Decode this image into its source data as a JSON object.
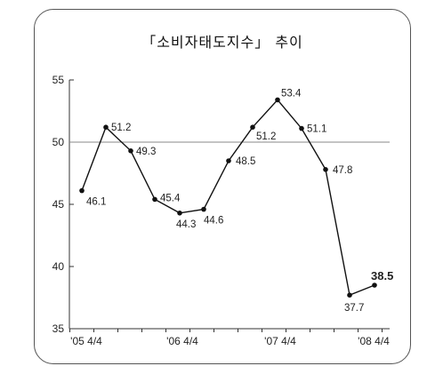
{
  "chart_data": {
    "type": "line",
    "title": "「소비자태도지수」  추이",
    "xlabel": "",
    "ylabel": "",
    "ylim": [
      35,
      55
    ],
    "yticks": [
      35,
      40,
      45,
      50,
      55
    ],
    "xtick_labels": [
      "'05  4/4",
      "'06  4/4",
      "'07  4/4",
      "'08  4/4"
    ],
    "reference_line": 50,
    "grid": false,
    "series": [
      {
        "values": [
          46.1,
          51.2,
          49.3,
          45.4,
          44.3,
          44.6,
          48.5,
          51.2,
          53.4,
          51.1,
          47.8,
          37.7,
          38.5
        ],
        "labels": [
          "46.1",
          "51.2",
          "49.3",
          "45.4",
          "44.3",
          "44.6",
          "48.5",
          "51.2",
          "53.4",
          "51.1",
          "47.8",
          "37.7",
          "38.5"
        ]
      }
    ],
    "colors": {
      "line": "#111111",
      "axis": "#333333",
      "reference": "#888888"
    }
  }
}
